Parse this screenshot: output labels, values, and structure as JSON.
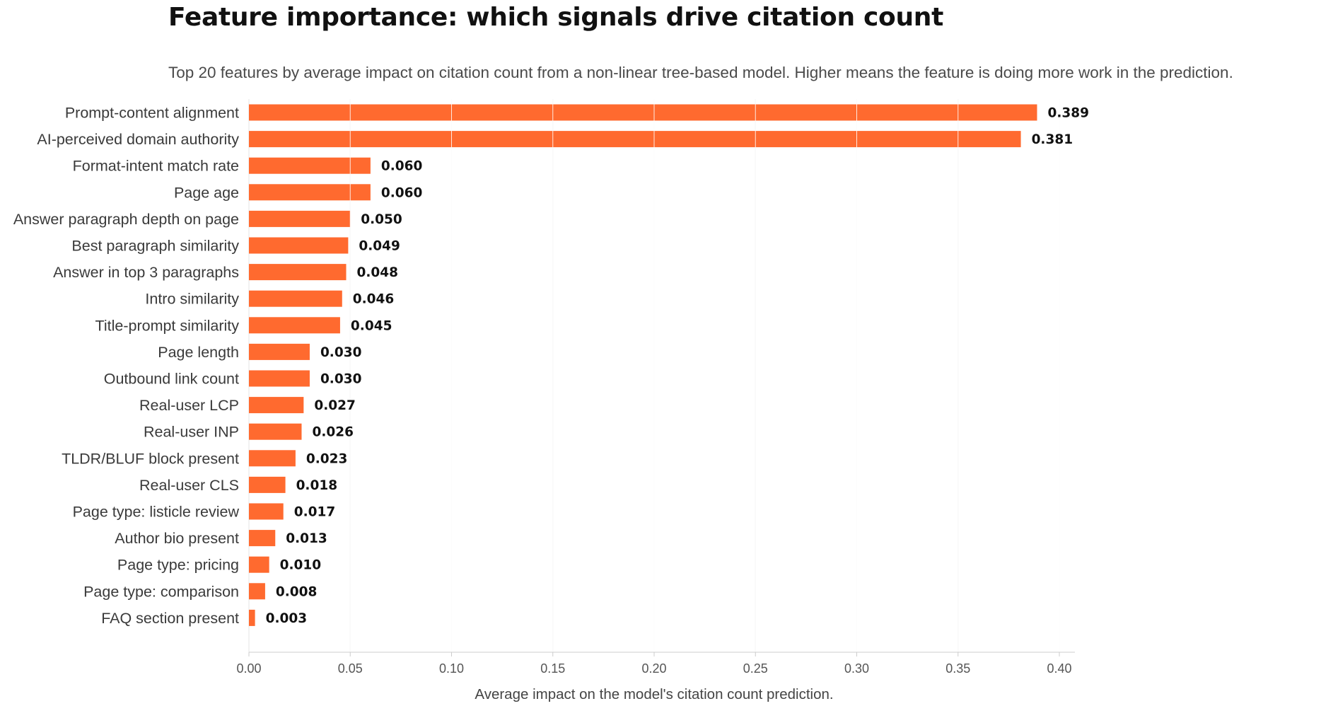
{
  "title": "Feature importance: which signals drive citation count",
  "subtitle": "Top 20 features by average impact on citation count from a non-linear tree-based model. Higher means the feature is doing more work in the prediction.",
  "colors": {
    "bar": "#ff6a2f",
    "grid": "#e6e6e6",
    "axis": "#cccccc"
  },
  "chart_data": {
    "type": "bar",
    "orientation": "horizontal",
    "title": "Feature importance: which signals drive citation count",
    "subtitle": "Top 20 features by average impact on citation count from a non-linear tree-based model. Higher means the feature is doing more work in the prediction.",
    "xlabel": "Average impact on the model's citation count prediction.",
    "ylabel": "",
    "xlim": [
      0,
      0.4
    ],
    "xticks": [
      "0.00",
      "0.05",
      "0.10",
      "0.15",
      "0.20",
      "0.25",
      "0.30",
      "0.35",
      "0.40"
    ],
    "grid": true,
    "categories": [
      "Prompt-content alignment",
      "AI-perceived domain authority",
      "Format-intent match rate",
      "Page age",
      "Answer paragraph depth on page",
      "Best paragraph similarity",
      "Answer in top 3 paragraphs",
      "Intro similarity",
      "Title-prompt similarity",
      "Page length",
      "Outbound link count",
      "Real-user LCP",
      "Real-user INP",
      "TLDR/BLUF block present",
      "Real-user CLS",
      "Page type: listicle review",
      "Author bio present",
      "Page type: pricing",
      "Page type: comparison",
      "FAQ section present"
    ],
    "values": [
      0.389,
      0.381,
      0.06,
      0.06,
      0.05,
      0.049,
      0.048,
      0.046,
      0.045,
      0.03,
      0.03,
      0.027,
      0.026,
      0.023,
      0.018,
      0.017,
      0.013,
      0.01,
      0.008,
      0.003
    ],
    "value_labels": [
      "0.389",
      "0.381",
      "0.060",
      "0.060",
      "0.050",
      "0.049",
      "0.048",
      "0.046",
      "0.045",
      "0.030",
      "0.030",
      "0.027",
      "0.026",
      "0.023",
      "0.018",
      "0.017",
      "0.013",
      "0.010",
      "0.008",
      "0.003"
    ]
  }
}
